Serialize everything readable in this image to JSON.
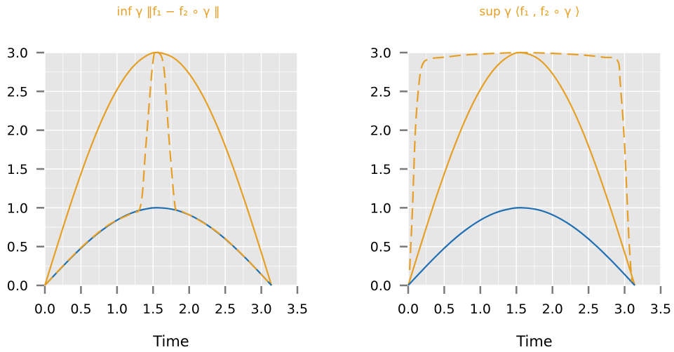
{
  "colors": {
    "orange": "#E69F25",
    "blue": "#1F6FB2",
    "panel_bg": "#E6E6E6",
    "grid": "#FFFFFF",
    "tick": "#7A7A7A"
  },
  "chart_data": [
    {
      "type": "line",
      "title": "inf γ  ‖f₁  −  f₂ ∘ γ ‖",
      "xlabel": "Time",
      "ylabel": "",
      "xlim": [
        0,
        3.5
      ],
      "ylim": [
        0,
        3.0
      ],
      "x_ticks": [
        "0.0",
        "0.5",
        "1.0",
        "1.5",
        "2.0",
        "2.5",
        "3.0",
        "3.5"
      ],
      "y_ticks": [
        "0.0",
        "0.5",
        "1.0",
        "1.5",
        "2.0",
        "2.5",
        "3.0"
      ],
      "grid": true,
      "series": [
        {
          "style": "solid",
          "color": "orange",
          "x": [
            0,
            0.2,
            0.4,
            0.6,
            0.8,
            1.0,
            1.2,
            1.4,
            1.5708,
            1.8,
            2.0,
            2.2,
            2.4,
            2.6,
            2.8,
            3.0,
            3.1416
          ],
          "y": [
            0,
            0.596,
            1.168,
            1.694,
            2.152,
            2.524,
            2.796,
            2.956,
            3.0,
            2.922,
            2.728,
            2.425,
            2.026,
            1.546,
            1.005,
            0.423,
            0
          ]
        },
        {
          "style": "solid",
          "color": "blue",
          "x": [
            0,
            0.2,
            0.4,
            0.6,
            0.8,
            1.0,
            1.2,
            1.4,
            1.5708,
            1.8,
            2.0,
            2.2,
            2.4,
            2.6,
            2.8,
            3.0,
            3.1416
          ],
          "y": [
            0,
            0.199,
            0.389,
            0.565,
            0.717,
            0.841,
            0.932,
            0.985,
            1.0,
            0.974,
            0.909,
            0.808,
            0.675,
            0.516,
            0.335,
            0.141,
            0
          ]
        },
        {
          "style": "dashed",
          "color": "orange",
          "x": [
            0,
            0.3,
            0.6,
            0.9,
            1.2,
            1.33,
            1.4,
            1.5,
            1.57,
            1.65,
            1.72,
            1.8,
            1.85,
            2.1,
            2.4,
            2.7,
            3.0,
            3.1416
          ],
          "y": [
            0,
            0.3,
            0.57,
            0.79,
            0.93,
            1.04,
            1.8,
            2.9,
            3.0,
            2.8,
            1.9,
            1.05,
            0.98,
            0.86,
            0.68,
            0.43,
            0.14,
            0
          ]
        }
      ]
    },
    {
      "type": "line",
      "title": "sup γ  ⟨f₁ , f₂ ∘ γ ⟩",
      "xlabel": "Time",
      "ylabel": "",
      "xlim": [
        0,
        3.5
      ],
      "ylim": [
        0,
        3.0
      ],
      "x_ticks": [
        "0.0",
        "0.5",
        "1.0",
        "1.5",
        "2.0",
        "2.5",
        "3.0",
        "3.5"
      ],
      "y_ticks": [
        "0.0",
        "0.5",
        "1.0",
        "1.5",
        "2.0",
        "2.5",
        "3.0"
      ],
      "grid": true,
      "series": [
        {
          "style": "solid",
          "color": "orange",
          "x": [
            0,
            0.2,
            0.4,
            0.6,
            0.8,
            1.0,
            1.2,
            1.4,
            1.5708,
            1.8,
            2.0,
            2.2,
            2.4,
            2.6,
            2.8,
            3.0,
            3.1416
          ],
          "y": [
            0,
            0.596,
            1.168,
            1.694,
            2.152,
            2.524,
            2.796,
            2.956,
            3.0,
            2.922,
            2.728,
            2.425,
            2.026,
            1.546,
            1.005,
            0.423,
            0
          ]
        },
        {
          "style": "solid",
          "color": "blue",
          "x": [
            0,
            0.2,
            0.4,
            0.6,
            0.8,
            1.0,
            1.2,
            1.4,
            1.5708,
            1.8,
            2.0,
            2.2,
            2.4,
            2.6,
            2.8,
            3.0,
            3.1416
          ],
          "y": [
            0,
            0.199,
            0.389,
            0.565,
            0.717,
            0.841,
            0.932,
            0.985,
            1.0,
            0.974,
            0.909,
            0.808,
            0.675,
            0.516,
            0.335,
            0.141,
            0
          ]
        },
        {
          "style": "dashed",
          "color": "orange",
          "x": [
            0.02,
            0.06,
            0.1,
            0.15,
            0.2,
            0.3,
            0.5,
            0.8,
            1.2,
            1.5708,
            2.0,
            2.4,
            2.7,
            2.9,
            2.94,
            3.0,
            3.06,
            3.1
          ],
          "y": [
            0.2,
            1.0,
            2.0,
            2.6,
            2.85,
            2.92,
            2.94,
            2.97,
            2.99,
            3.0,
            2.99,
            2.97,
            2.94,
            2.9,
            2.6,
            1.8,
            0.6,
            0.05
          ]
        }
      ]
    }
  ]
}
